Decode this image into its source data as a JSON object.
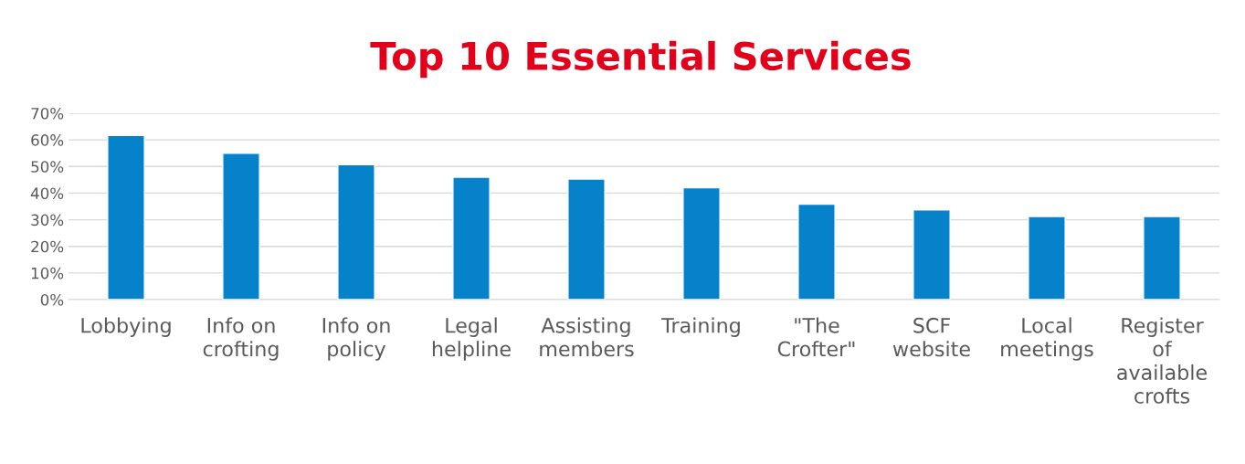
{
  "chart_data": {
    "type": "bar",
    "title": "Top 10 Essential Services",
    "categories": [
      "Lobbying",
      "Info on\ncrofting",
      "Info on\npolicy",
      "Legal\nhelpline",
      "Assisting\nmembers",
      "Training",
      "\"The\nCrofter\"",
      "SCF\nwebsite",
      "Local\nmeetings",
      "Register\nof\navailable\ncrofts"
    ],
    "values": [
      61.7,
      55,
      50.7,
      46,
      45.3,
      42,
      35.8,
      33.7,
      31.2,
      31.2
    ],
    "color": "#0582ca",
    "ylim": [
      0,
      70
    ],
    "yticks": [
      {
        "value": 0,
        "label": "0%"
      },
      {
        "value": 10,
        "label": "10%"
      },
      {
        "value": 20,
        "label": "20%"
      },
      {
        "value": 30,
        "label": "30%"
      },
      {
        "value": 40,
        "label": "40%"
      },
      {
        "value": 50,
        "label": "50%"
      },
      {
        "value": 60,
        "label": "60%"
      },
      {
        "value": 70,
        "label": "70%"
      }
    ],
    "grid": "y"
  }
}
